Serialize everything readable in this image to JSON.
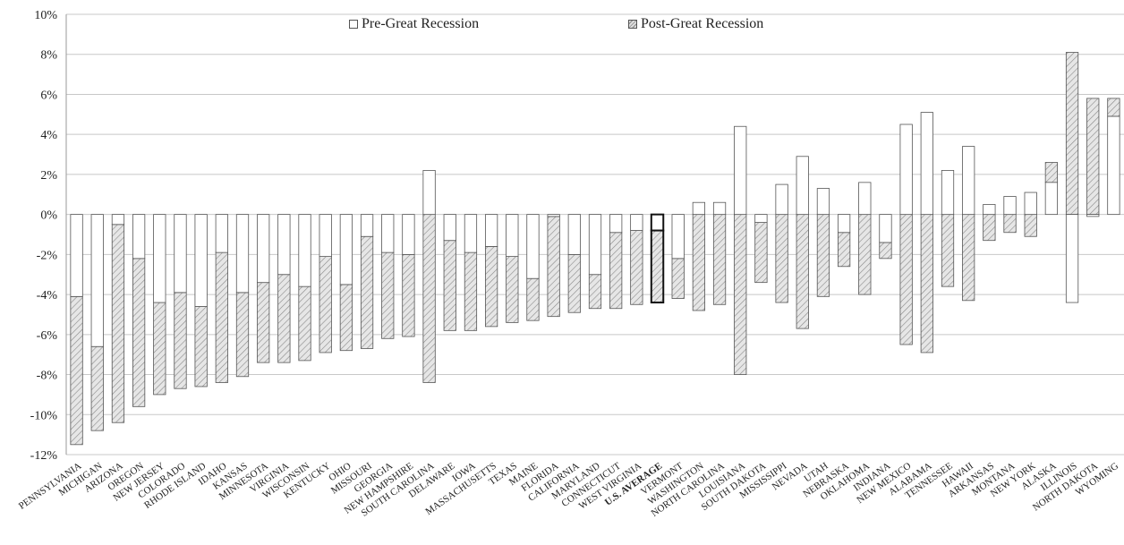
{
  "colors": {
    "pre_fill": "#ffffff",
    "post_fill_base": "#e6e6e6",
    "post_hatch": "#8a8a8a",
    "bar_stroke": "#555555",
    "grid": "#c8c8c8"
  },
  "chart_data": {
    "type": "bar",
    "stacked": true,
    "categories": [
      "PENNSYLVANIA",
      "MICHIGAN",
      "ARIZONA",
      "OREGON",
      "NEW JERSEY",
      "COLORADO",
      "RHODE ISLAND",
      "IDAHO",
      "KANSAS",
      "MINNESOTA",
      "VIRGINIA",
      "WISCONSIN",
      "KENTUCKY",
      "OHIO",
      "MISSOURI",
      "GEORGIA",
      "NEW HAMPSHIRE",
      "SOUTH CAROLINA",
      "DELAWARE",
      "IOWA",
      "MASSACHUSETTS",
      "TEXAS",
      "MAINE",
      "FLORIDA",
      "CALIFORNIA",
      "MARYLAND",
      "CONNECTICUT",
      "WEST VIRGINIA",
      "U.S. AVERAGE",
      "VERMONT",
      "WASHINGTON",
      "NORTH CAROLINA",
      "LOUISIANA",
      "SOUTH DAKOTA",
      "MISSISSIPPI",
      "NEVADA",
      "UTAH",
      "NEBRASKA",
      "OKLAHOMA",
      "INDIANA",
      "NEW MEXICO",
      "ALABAMA",
      "TENNESSEE",
      "HAWAII",
      "ARKANSAS",
      "MONTANA",
      "NEW YORK",
      "ALASKA",
      "ILLINOIS",
      "NORTH DAKOTA",
      "WYOMING"
    ],
    "highlight_category": "U.S. AVERAGE",
    "series": [
      {
        "name": "Pre-Great Recession",
        "values": [
          -4.1,
          -6.6,
          -0.5,
          -2.2,
          -4.4,
          -3.9,
          -4.6,
          -1.9,
          -3.9,
          -3.4,
          -3.0,
          -3.6,
          -2.1,
          -3.5,
          -1.1,
          -1.9,
          -2.0,
          2.2,
          -1.3,
          -1.9,
          -1.6,
          -2.1,
          -3.2,
          -0.1,
          -2.0,
          -3.0,
          -0.9,
          -0.8,
          -0.8,
          -2.2,
          0.6,
          0.6,
          4.4,
          -0.4,
          1.5,
          2.9,
          1.3,
          -0.9,
          1.6,
          -1.4,
          4.5,
          5.1,
          2.2,
          3.4,
          0.5,
          0.9,
          1.1,
          1.6,
          -4.4,
          -0.1,
          4.9
        ]
      },
      {
        "name": "Post-Great Recession",
        "values": [
          -7.4,
          -4.2,
          -9.9,
          -7.4,
          -4.6,
          -4.8,
          -4.0,
          -6.5,
          -4.2,
          -4.0,
          -4.4,
          -3.7,
          -4.8,
          -3.3,
          -5.6,
          -4.3,
          -4.1,
          -8.4,
          -4.5,
          -3.9,
          -4.0,
          -3.3,
          -2.1,
          -5.0,
          -2.9,
          -1.7,
          -3.8,
          -3.7,
          -3.6,
          -2.0,
          -4.8,
          -4.5,
          -8.0,
          -3.0,
          -4.4,
          -5.7,
          -4.1,
          -1.7,
          -4.0,
          -0.8,
          -6.5,
          -6.9,
          -3.6,
          -4.3,
          -1.3,
          -0.9,
          -1.1,
          1.0,
          8.1,
          5.8,
          0.9
        ]
      }
    ],
    "y_ticks": [
      "10%",
      "8%",
      "6%",
      "4%",
      "2%",
      "0%",
      "-2%",
      "-4%",
      "-6%",
      "-8%",
      "-10%",
      "-12%"
    ],
    "y_tick_values": [
      10,
      8,
      6,
      4,
      2,
      0,
      -2,
      -4,
      -6,
      -8,
      -10,
      -12
    ],
    "ylim": [
      -12,
      10
    ],
    "grid": true,
    "legend_position": "top-center",
    "title": "",
    "xlabel": "",
    "ylabel": ""
  },
  "legend": {
    "pre_label": "Pre-Great Recession",
    "post_label": "Post-Great Recession"
  }
}
